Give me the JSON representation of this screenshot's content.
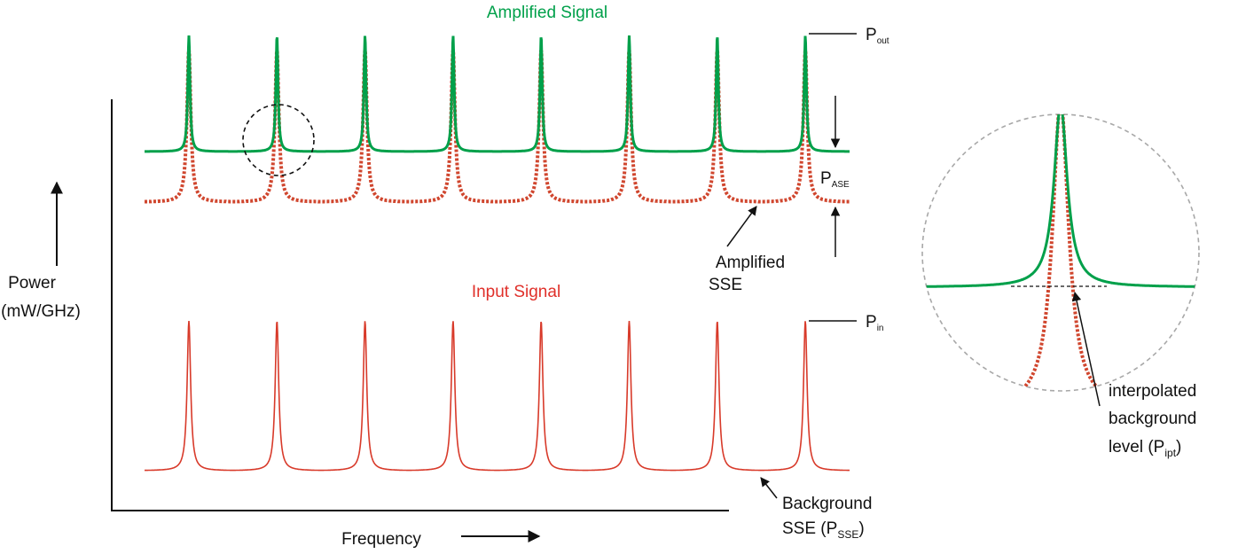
{
  "titles": {
    "amplified_signal": "Amplified Signal",
    "input_signal": "Input Signal"
  },
  "axes": {
    "y_label_line1": "Power",
    "y_label_line2": "(mW/GHz)",
    "x_label": "Frequency"
  },
  "labels": {
    "p_out_main": "P",
    "p_out_sub": "out",
    "p_ase_main": "P",
    "p_ase_sub": "ASE",
    "p_in_main": "P",
    "p_in_sub": "in",
    "amplified_sse_line1": "Amplified",
    "amplified_sse_line2": "SSE",
    "background_line1": "Background",
    "background_line2_prefix": "SSE (P",
    "background_line2_sub": "SSE",
    "background_line2_suffix": ")",
    "interp_line1": "interpolated",
    "interp_line2": "background",
    "interp_line3_prefix": "level (P",
    "interp_line3_sub": "ipt",
    "interp_line3_suffix": ")"
  },
  "channels": {
    "count": 8
  },
  "colors": {
    "green_signal": "#00a04a",
    "red_signal": "#d83a2a",
    "red_dotted": "#d0462e",
    "axis": "#111111",
    "zoom_circle": "#a8a8a8",
    "highlight_circle": "#111111"
  }
}
